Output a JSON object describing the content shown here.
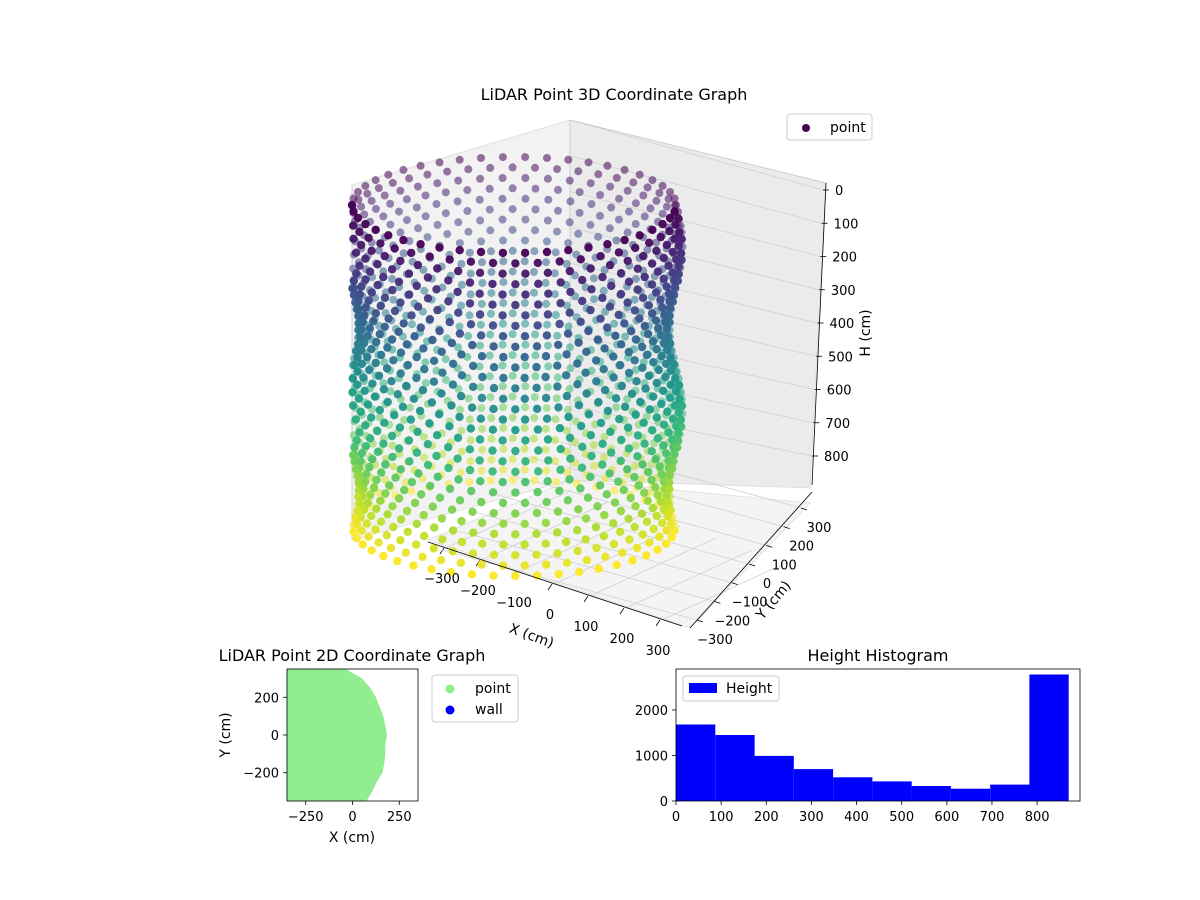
{
  "colors": {
    "viridis": [
      "#440154",
      "#482878",
      "#3e4989",
      "#31688e",
      "#26828e",
      "#1f9e89",
      "#35b779",
      "#6ece58",
      "#b5de2b",
      "#fde725"
    ],
    "point_2d": "#90ee90",
    "wall_2d": "#0000ff",
    "histogram": "#0000ff",
    "pane": "#f2f2f2"
  },
  "chart_data": [
    {
      "id": "scatter3d",
      "type": "scatter",
      "title": "LiDAR Point 3D Coordinate Graph",
      "xlabel": "X (cm)",
      "ylabel": "Y (cm)",
      "zlabel": "H (cm)",
      "x_ticks": [
        -300,
        -200,
        -100,
        0,
        100,
        200,
        300
      ],
      "y_ticks": [
        -300,
        -200,
        -100,
        0,
        100,
        200,
        300
      ],
      "z_ticks": [
        0,
        100,
        200,
        300,
        400,
        500,
        600,
        700,
        800
      ],
      "xlim": [
        -360,
        360
      ],
      "ylim": [
        -360,
        360
      ],
      "zlim": [
        0,
        880
      ],
      "z_inverted": true,
      "legend": {
        "position": "top-right",
        "entries": [
          "point"
        ]
      },
      "grid": true,
      "series": [
        {
          "name": "point",
          "shape": "cylindrical wall",
          "center": [
            0,
            0
          ],
          "radius": 300,
          "height_range": [
            0,
            870
          ],
          "color_by": "height",
          "colormap": "viridis"
        }
      ]
    },
    {
      "id": "scatter2d",
      "type": "scatter",
      "title": "LiDAR Point 2D Coordinate Graph",
      "xlabel": "X (cm)",
      "ylabel": "Y (cm)",
      "x_ticks": [
        -250,
        0,
        250
      ],
      "y_ticks": [
        -200,
        0,
        200
      ],
      "xlim": [
        -350,
        350
      ],
      "ylim": [
        -350,
        350
      ],
      "legend": {
        "position": "outside-right",
        "entries": [
          "point",
          "wall"
        ]
      },
      "series": [
        {
          "name": "point",
          "shape": "filled region",
          "x_right_edge": [
            [
              350,
              -35
            ],
            [
              300,
              50
            ],
            [
              250,
              95
            ],
            [
              200,
              125
            ],
            [
              150,
              145
            ],
            [
              100,
              165
            ],
            [
              50,
              175
            ],
            [
              0,
              185
            ],
            [
              -50,
              175
            ],
            [
              -100,
              175
            ],
            [
              -150,
              170
            ],
            [
              -200,
              160
            ],
            [
              -250,
              130
            ],
            [
              -300,
              105
            ],
            [
              -350,
              75
            ]
          ]
        },
        {
          "name": "wall",
          "values": []
        }
      ]
    },
    {
      "id": "histogram",
      "type": "bar",
      "title": "Height Histogram",
      "xlabel": "",
      "ylabel": "",
      "x_ticks": [
        0,
        100,
        200,
        300,
        400,
        500,
        600,
        700,
        800
      ],
      "y_ticks": [
        0,
        1000,
        2000
      ],
      "xlim": [
        0,
        895
      ],
      "ylim": [
        0,
        2900
      ],
      "bin_edges": [
        0,
        87,
        174,
        261,
        348,
        435,
        522,
        609,
        696,
        783,
        870
      ],
      "values": [
        1680,
        1450,
        990,
        700,
        520,
        430,
        330,
        270,
        360,
        2780
      ],
      "legend": {
        "position": "top-left",
        "entries": [
          "Height"
        ]
      },
      "series": [
        {
          "name": "Height"
        }
      ]
    }
  ]
}
